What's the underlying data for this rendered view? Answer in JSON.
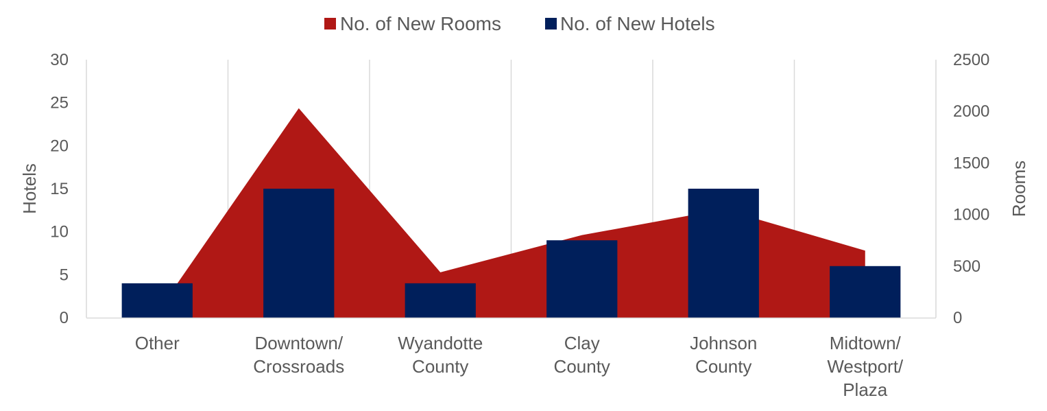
{
  "chart_data": {
    "type": "bar",
    "categories": [
      [
        "Other"
      ],
      [
        "Downtown/",
        "Crossroads"
      ],
      [
        "Wyandotte",
        "County"
      ],
      [
        "Clay",
        "County"
      ],
      [
        "Johnson",
        "County"
      ],
      [
        "Midtown/",
        "Westport/",
        "Plaza"
      ]
    ],
    "series": [
      {
        "name": "No. of New Rooms",
        "type": "area",
        "axis": "right",
        "color": "#B01815",
        "values": [
          50,
          2030,
          440,
          800,
          1050,
          650
        ]
      },
      {
        "name": "No. of New Hotels",
        "type": "bar",
        "axis": "left",
        "color": "#001F5B",
        "values": [
          4,
          15,
          4,
          9,
          15,
          6
        ]
      }
    ],
    "ylabel": "Hotels",
    "ylim": [
      0,
      30
    ],
    "yticks": [
      "0",
      "5",
      "10",
      "15",
      "20",
      "25",
      "30"
    ],
    "y2label": "Rooms",
    "y2lim": [
      0,
      2500
    ],
    "y2ticks": [
      "0",
      "500",
      "1000",
      "1500",
      "2000",
      "2500"
    ],
    "grid": "vertical",
    "legend": "top-center"
  }
}
